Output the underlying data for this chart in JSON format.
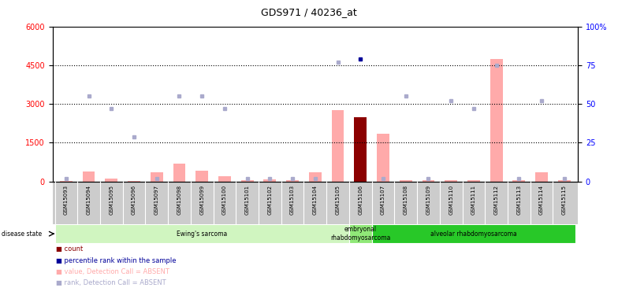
{
  "title": "GDS971 / 40236_at",
  "samples": [
    "GSM15093",
    "GSM15094",
    "GSM15095",
    "GSM15096",
    "GSM15097",
    "GSM15098",
    "GSM15099",
    "GSM15100",
    "GSM15101",
    "GSM15102",
    "GSM15103",
    "GSM15104",
    "GSM15105",
    "GSM15106",
    "GSM15107",
    "GSM15108",
    "GSM15109",
    "GSM15110",
    "GSM15111",
    "GSM15112",
    "GSM15113",
    "GSM15114",
    "GSM15115"
  ],
  "value_bars": [
    30,
    400,
    100,
    30,
    340,
    680,
    430,
    200,
    45,
    90,
    45,
    340,
    2750,
    2500,
    1850,
    50,
    45,
    45,
    45,
    4750,
    45,
    340,
    45
  ],
  "rank_dots_pct": [
    2,
    55,
    47,
    29,
    2,
    55,
    55,
    47,
    2,
    2,
    2,
    2,
    77,
    79,
    2,
    55,
    2,
    52,
    47,
    75,
    2,
    52,
    2
  ],
  "count_bar_index": 13,
  "count_dot_index": 13,
  "disease_groups": [
    {
      "label": "Ewing's sarcoma",
      "start": 0,
      "end": 13,
      "color": "#d0f5c0"
    },
    {
      "label": "embryonal\nrhabdomyosarcoma",
      "start": 13,
      "end": 14,
      "color": "#90e878"
    },
    {
      "label": "alveolar rhabdomyosarcoma",
      "start": 14,
      "end": 23,
      "color": "#28c828"
    }
  ],
  "ylim_left": [
    0,
    6000
  ],
  "ylim_right": [
    0,
    100
  ],
  "yticks_left": [
    0,
    1500,
    3000,
    4500,
    6000
  ],
  "ytick_labels_left": [
    "0",
    "1500",
    "3000",
    "4500",
    "6000"
  ],
  "yticks_right": [
    0,
    25,
    50,
    75,
    100
  ],
  "ytick_labels_right": [
    "0",
    "25",
    "50",
    "75",
    "100%"
  ],
  "dotted_lines_pct": [
    25,
    50,
    75
  ],
  "bar_color_absent": "#ffaaaa",
  "bar_color_count": "#8b0000",
  "dot_color_absent": "#aaaacc",
  "dot_color_count": "#000099",
  "bg_sample_labels": "#cccccc",
  "legend_items": [
    {
      "symbol": "s",
      "color": "#8b0000",
      "label": "count"
    },
    {
      "symbol": "s",
      "color": "#000099",
      "label": "percentile rank within the sample"
    },
    {
      "symbol": "s",
      "color": "#ffaaaa",
      "label": "value, Detection Call = ABSENT"
    },
    {
      "symbol": "s",
      "color": "#aaaacc",
      "label": "rank, Detection Call = ABSENT"
    }
  ]
}
